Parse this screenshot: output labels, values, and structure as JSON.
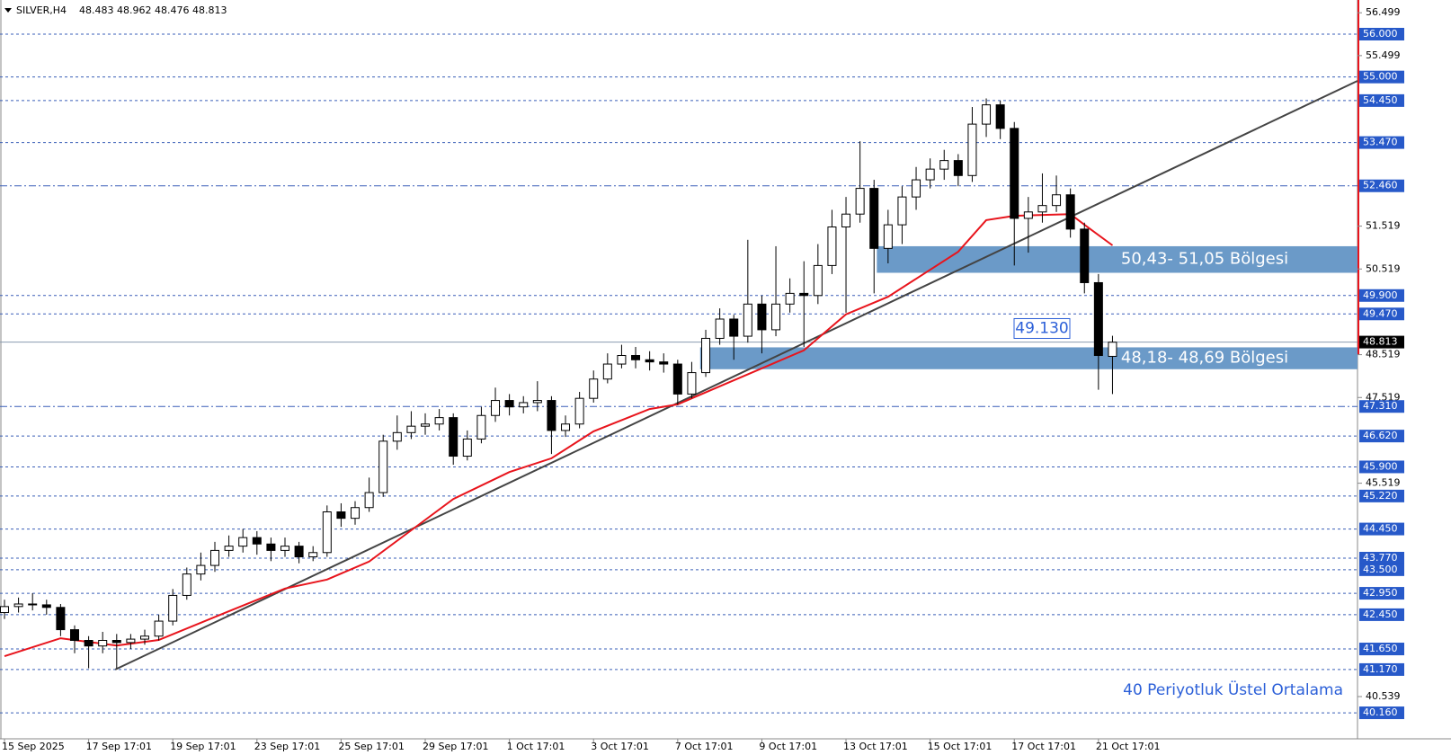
{
  "chart_data": {
    "type": "candlestick",
    "title": "SILVER,H4",
    "header_values": [
      48.483,
      48.962,
      48.476,
      48.813
    ],
    "open": [
      42.5,
      42.64,
      42.7,
      42.68,
      42.62,
      42.1,
      41.85,
      41.72,
      41.85,
      41.8,
      41.88,
      41.95,
      42.3,
      42.9,
      43.4,
      43.6,
      43.95,
      44.05,
      44.25,
      44.1,
      43.95,
      44.05,
      43.8,
      43.9,
      44.85,
      44.7,
      44.95,
      45.3,
      46.5,
      46.7,
      46.85,
      46.9,
      47.05,
      46.15,
      46.55,
      47.1,
      47.45,
      47.3,
      47.4,
      47.45,
      46.75,
      46.9,
      47.5,
      47.95,
      48.3,
      48.5,
      48.4,
      48.35,
      48.3,
      47.6,
      48.1,
      48.9,
      49.35,
      48.95,
      49.7,
      49.1,
      49.7,
      49.95,
      49.9,
      50.6,
      51.5,
      51.8,
      52.4,
      51.0,
      51.55,
      52.2,
      52.6,
      52.85,
      53.05,
      52.7,
      53.9,
      54.35,
      53.8,
      51.7,
      51.85,
      52.0,
      52.25,
      51.45,
      50.2,
      48.48
    ],
    "high": [
      42.8,
      42.85,
      42.95,
      42.8,
      42.7,
      42.2,
      41.95,
      42.05,
      42.0,
      42.0,
      42.1,
      42.45,
      43.05,
      43.55,
      43.9,
      44.15,
      44.3,
      44.45,
      44.4,
      44.25,
      44.25,
      44.15,
      44.05,
      45.0,
      45.05,
      45.1,
      45.65,
      46.65,
      47.1,
      47.2,
      47.15,
      47.25,
      47.15,
      46.75,
      47.3,
      47.75,
      47.6,
      47.55,
      47.9,
      47.55,
      47.1,
      47.65,
      48.15,
      48.55,
      48.75,
      48.7,
      48.6,
      48.55,
      48.4,
      48.35,
      49.1,
      49.6,
      49.45,
      51.2,
      49.9,
      51.05,
      50.3,
      50.7,
      51.1,
      51.9,
      52.2,
      53.5,
      52.6,
      51.9,
      52.45,
      52.9,
      53.1,
      53.3,
      53.2,
      54.3,
      54.5,
      54.45,
      53.95,
      52.2,
      52.75,
      52.7,
      52.4,
      51.6,
      50.4,
      48.96
    ],
    "low": [
      42.35,
      42.5,
      42.55,
      42.45,
      41.95,
      41.55,
      41.2,
      41.55,
      41.2,
      41.65,
      41.75,
      41.85,
      42.2,
      42.8,
      43.25,
      43.45,
      43.8,
      43.9,
      43.85,
      43.7,
      43.8,
      43.65,
      43.7,
      43.8,
      44.5,
      44.55,
      44.85,
      45.2,
      46.3,
      46.55,
      46.65,
      46.75,
      45.95,
      46.05,
      46.45,
      46.95,
      47.1,
      47.15,
      47.2,
      46.2,
      46.6,
      46.8,
      47.4,
      47.85,
      48.2,
      48.2,
      48.15,
      48.1,
      47.35,
      47.5,
      48.0,
      48.75,
      48.4,
      48.8,
      48.55,
      48.95,
      49.5,
      48.7,
      49.7,
      50.4,
      49.5,
      51.6,
      49.95,
      50.65,
      51.1,
      51.9,
      52.4,
      52.6,
      52.45,
      52.55,
      53.6,
      53.55,
      50.6,
      50.9,
      51.6,
      51.85,
      51.25,
      49.95,
      47.7,
      47.6
    ],
    "close": [
      42.64,
      42.7,
      42.68,
      42.62,
      42.1,
      41.85,
      41.72,
      41.85,
      41.8,
      41.88,
      41.95,
      42.3,
      42.9,
      43.4,
      43.6,
      43.95,
      44.05,
      44.25,
      44.1,
      43.95,
      44.05,
      43.8,
      43.9,
      44.85,
      44.7,
      44.95,
      45.3,
      46.5,
      46.7,
      46.85,
      46.9,
      47.05,
      46.15,
      46.55,
      47.1,
      47.45,
      47.3,
      47.4,
      47.45,
      46.75,
      46.9,
      47.5,
      47.95,
      48.3,
      48.5,
      48.4,
      48.35,
      48.3,
      47.6,
      48.1,
      48.9,
      49.35,
      48.95,
      49.7,
      49.1,
      49.7,
      49.95,
      49.9,
      50.6,
      51.5,
      51.8,
      52.4,
      51.0,
      51.55,
      52.2,
      52.6,
      52.85,
      53.05,
      52.7,
      53.9,
      54.35,
      53.8,
      51.7,
      51.85,
      52.0,
      52.25,
      51.45,
      50.2,
      48.5,
      48.81
    ],
    "ema": {
      "color": "#e8141c",
      "x": [
        0,
        4,
        8,
        11,
        16,
        20,
        23,
        26,
        29,
        32,
        36,
        39,
        42,
        46,
        48,
        51,
        54,
        57,
        60,
        63,
        65,
        68,
        70,
        72,
        76,
        77,
        79
      ],
      "values": [
        41.48,
        41.9,
        41.73,
        41.86,
        42.53,
        43.06,
        43.27,
        43.69,
        44.42,
        45.15,
        45.78,
        46.1,
        46.73,
        47.25,
        47.36,
        47.78,
        48.2,
        48.62,
        49.46,
        49.87,
        50.29,
        50.92,
        51.66,
        51.76,
        51.8,
        51.55,
        51.07
      ]
    },
    "trendline": {
      "color": "#444444",
      "x": [
        7.9,
        96.47
      ],
      "values": [
        41.17,
        54.91
      ]
    },
    "zones": [
      {
        "label": "50,43- 51,05 Bölgesi",
        "range": [
          50.43,
          51.05
        ],
        "start": 62.2
      },
      {
        "label": "48,18- 48,69 Bölgesi",
        "range": [
          48.18,
          48.69
        ],
        "start": 49.6
      }
    ],
    "levels": [
      {
        "value": 56,
        "label": "56.000"
      },
      {
        "value": 55,
        "label": "55.000"
      },
      {
        "value": 54.45,
        "label": "54.450"
      },
      {
        "value": 53.47,
        "label": "53.470"
      },
      {
        "value": 52.46,
        "label": "52.460",
        "style": "dashdot"
      },
      {
        "value": 49.9,
        "label": "49.900"
      },
      {
        "value": 49.47,
        "label": "49.470"
      },
      {
        "value": 47.31,
        "label": "47.310",
        "style": "dashdot"
      },
      {
        "value": 46.62,
        "label": "46.620"
      },
      {
        "value": 45.9,
        "label": "45.900"
      },
      {
        "value": 45.22,
        "label": "45.220"
      },
      {
        "value": 44.45,
        "label": "44.450"
      },
      {
        "value": 43.77,
        "label": "43.770"
      },
      {
        "value": 43.5,
        "label": "43.500"
      },
      {
        "value": 42.95,
        "label": "42.950"
      },
      {
        "value": 42.45,
        "label": "42.450"
      },
      {
        "value": 41.65,
        "label": "41.650"
      },
      {
        "value": 41.17,
        "label": "41.170"
      },
      {
        "value": 40.16,
        "label": "40.160"
      }
    ],
    "current_price": 48.813,
    "price_label": {
      "value": 49.13,
      "label": "49.130"
    },
    "legend_text": "40 Periyotluk Üstel Ortalama",
    "ylim": [
      39.553,
      56.797
    ],
    "yticks": [
      56.499,
      55.499,
      51.519,
      50.519,
      48.519,
      47.519,
      45.519,
      40.539
    ],
    "xlim": [
      -0.32,
      96.47
    ],
    "xticks": [
      {
        "value": 0,
        "label": "15 Sep 2025"
      },
      {
        "value": 6,
        "label": "17 Sep 17:01"
      },
      {
        "value": 12,
        "label": "19 Sep 17:01"
      },
      {
        "value": 18,
        "label": "23 Sep 17:01"
      },
      {
        "value": 24,
        "label": "25 Sep 17:01"
      },
      {
        "value": 30,
        "label": "29 Sep 17:01"
      },
      {
        "value": 36,
        "label": "1 Oct 17:01"
      },
      {
        "value": 42,
        "label": "3 Oct 17:01"
      },
      {
        "value": 48,
        "label": "7 Oct 17:01"
      },
      {
        "value": 54,
        "label": "9 Oct 17:01"
      },
      {
        "value": 60,
        "label": "13 Oct 17:01"
      },
      {
        "value": 66,
        "label": "15 Oct 17:01"
      },
      {
        "value": 72,
        "label": "17 Oct 17:01"
      },
      {
        "value": 78,
        "label": "21 Oct 17:01"
      }
    ]
  }
}
